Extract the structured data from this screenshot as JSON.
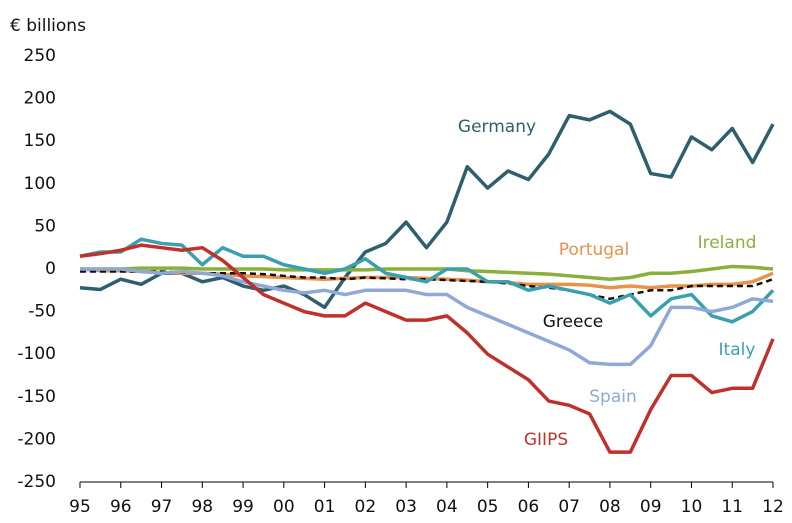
{
  "chart_data": {
    "type": "line",
    "y_label": "€ billions",
    "x": [
      1995,
      1995.5,
      1996,
      1996.5,
      1997,
      1997.5,
      1998,
      1998.5,
      1999,
      1999.5,
      2000,
      2000.5,
      2001,
      2001.5,
      2002,
      2002.5,
      2003,
      2003.5,
      2004,
      2004.5,
      2005,
      2005.5,
      2006,
      2006.5,
      2007,
      2007.5,
      2008,
      2008.5,
      2009,
      2009.5,
      2010,
      2010.5,
      2011,
      2011.5,
      2012
    ],
    "xlim": [
      1995,
      2012
    ],
    "xticks": [
      {
        "value": 1995,
        "label": "95"
      },
      {
        "value": 1996,
        "label": "96"
      },
      {
        "value": 1997,
        "label": "97"
      },
      {
        "value": 1998,
        "label": "98"
      },
      {
        "value": 1999,
        "label": "99"
      },
      {
        "value": 2000,
        "label": "00"
      },
      {
        "value": 2001,
        "label": "01"
      },
      {
        "value": 2002,
        "label": "02"
      },
      {
        "value": 2003,
        "label": "03"
      },
      {
        "value": 2004,
        "label": "04"
      },
      {
        "value": 2005,
        "label": "05"
      },
      {
        "value": 2006,
        "label": "06"
      },
      {
        "value": 2007,
        "label": "07"
      },
      {
        "value": 2008,
        "label": "08"
      },
      {
        "value": 2009,
        "label": "09"
      },
      {
        "value": 2010,
        "label": "10"
      },
      {
        "value": 2011,
        "label": "11"
      },
      {
        "value": 2012,
        "label": "12"
      }
    ],
    "ylim": [
      -250,
      250
    ],
    "yticks": [
      -250,
      -200,
      -150,
      -100,
      -50,
      0,
      50,
      100,
      150,
      200,
      250
    ],
    "grid": false,
    "series": [
      {
        "name": "Germany",
        "color": "#2e5f6e",
        "values": [
          -22,
          -24,
          -12,
          -18,
          -5,
          -5,
          -15,
          -10,
          -20,
          -25,
          -20,
          -30,
          -45,
          -10,
          20,
          30,
          55,
          25,
          55,
          120,
          95,
          115,
          105,
          135,
          180,
          175,
          185,
          170,
          112,
          108,
          155,
          140,
          165,
          125,
          170
        ]
      },
      {
        "name": "Portugal",
        "color": "#e8924a",
        "values": [
          0,
          -2,
          -2,
          -3,
          -4,
          -5,
          -5,
          -6,
          -8,
          -9,
          -10,
          -11,
          -12,
          -11,
          -10,
          -10,
          -10,
          -11,
          -12,
          -13,
          -15,
          -16,
          -18,
          -18,
          -18,
          -19,
          -22,
          -20,
          -22,
          -20,
          -20,
          -18,
          -18,
          -15,
          -5
        ]
      },
      {
        "name": "Ireland",
        "color": "#8ab03c",
        "values": [
          0,
          0,
          0,
          1,
          1,
          1,
          0,
          0,
          0,
          0,
          -1,
          -1,
          -1,
          -1,
          -1,
          0,
          0,
          0,
          0,
          -2,
          -3,
          -4,
          -5,
          -6,
          -8,
          -10,
          -12,
          -10,
          -5,
          -5,
          -3,
          0,
          3,
          2,
          0
        ]
      },
      {
        "name": "Greece",
        "color": "#111111",
        "dashed": true,
        "values": [
          -3,
          -3,
          -3,
          -3,
          -3,
          -4,
          -5,
          -5,
          -5,
          -6,
          -8,
          -10,
          -10,
          -12,
          -10,
          -11,
          -12,
          -12,
          -13,
          -14,
          -15,
          -17,
          -20,
          -22,
          -25,
          -30,
          -35,
          -30,
          -25,
          -25,
          -20,
          -20,
          -20,
          -20,
          -12
        ]
      },
      {
        "name": "Italy",
        "color": "#3aa0b0",
        "values": [
          15,
          20,
          20,
          35,
          30,
          28,
          5,
          25,
          15,
          15,
          5,
          0,
          -5,
          0,
          12,
          -5,
          -10,
          -15,
          0,
          0,
          -15,
          -15,
          -25,
          -20,
          -25,
          -30,
          -40,
          -30,
          -55,
          -35,
          -30,
          -55,
          -62,
          -50,
          -25
        ]
      },
      {
        "name": "Spain",
        "color": "#8fa8d6",
        "values": [
          0,
          0,
          0,
          -3,
          -5,
          -3,
          -5,
          -8,
          -15,
          -20,
          -25,
          -28,
          -25,
          -30,
          -25,
          -25,
          -25,
          -30,
          -30,
          -45,
          -55,
          -65,
          -75,
          -85,
          -95,
          -110,
          -112,
          -112,
          -90,
          -45,
          -45,
          -50,
          -45,
          -35,
          -38
        ]
      },
      {
        "name": "GIIPS",
        "color": "#c0312b",
        "values": [
          15,
          18,
          22,
          28,
          25,
          22,
          25,
          10,
          -10,
          -30,
          -40,
          -50,
          -55,
          -55,
          -40,
          -50,
          -60,
          -60,
          -55,
          -75,
          -100,
          -115,
          -130,
          -155,
          -160,
          -170,
          -215,
          -215,
          -165,
          -125,
          -125,
          -145,
          -140,
          -140,
          -82
        ]
      }
    ]
  }
}
